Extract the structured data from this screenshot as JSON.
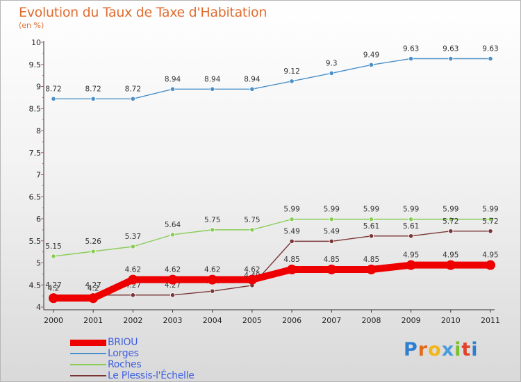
{
  "logo": {
    "letters": [
      "P",
      "r",
      "o",
      "x",
      "i",
      "t",
      "i"
    ]
  },
  "chart_data": {
    "type": "line",
    "title": "Evolution du Taux de Taxe d'Habitation",
    "unit_label": "(en %)",
    "xlabel": "",
    "ylabel": "",
    "categories": [
      "2000",
      "2001",
      "2002",
      "2003",
      "2004",
      "2005",
      "2006",
      "2007",
      "2008",
      "2009",
      "2010",
      "2011"
    ],
    "ylim": [
      4,
      10
    ],
    "yticks": [
      "4",
      "4.5",
      "5",
      "5.5",
      "6",
      "6.5",
      "7",
      "7.5",
      "8",
      "8.5",
      "9",
      "9.5",
      "10"
    ],
    "grid": false,
    "legend_position": "bottom-left",
    "series": [
      {
        "name": "BRIOU",
        "color": "#ee0000",
        "values": [
          4.2,
          4.2,
          4.62,
          4.62,
          4.62,
          4.62,
          4.85,
          4.85,
          4.85,
          4.95,
          4.95,
          4.95
        ],
        "labels": [
          "4.2",
          "4.2",
          "4.62",
          "4.62",
          "4.62",
          "4.62",
          "4.85",
          "4.85",
          "4.85",
          "4.95",
          "4.95",
          "4.95"
        ]
      },
      {
        "name": "Lorges",
        "color": "#4a90c8",
        "values": [
          8.72,
          8.72,
          8.72,
          8.94,
          8.94,
          8.94,
          9.12,
          9.3,
          9.49,
          9.63,
          9.63,
          9.63
        ],
        "labels": [
          "8.72",
          "8.72",
          "8.72",
          "8.94",
          "8.94",
          "8.94",
          "9.12",
          "9.3",
          "9.49",
          "9.63",
          "9.63",
          "9.63"
        ]
      },
      {
        "name": "Roches",
        "color": "#88cc55",
        "values": [
          5.15,
          5.26,
          5.37,
          5.64,
          5.75,
          5.75,
          5.99,
          5.99,
          5.99,
          5.99,
          5.99,
          5.99
        ],
        "labels": [
          "5.15",
          "5.26",
          "5.37",
          "5.64",
          "5.75",
          "5.75",
          "5.99",
          "5.99",
          "5.99",
          "5.99",
          "5.99",
          "5.99"
        ]
      },
      {
        "name": "Le Plessis-l'Échelle",
        "color": "#7a3535",
        "values": [
          4.27,
          4.27,
          4.27,
          4.27,
          4.36,
          4.49,
          5.49,
          5.49,
          5.61,
          5.61,
          5.72,
          5.72
        ],
        "labels": [
          "4.27",
          "4.27",
          "4.27",
          "4.27",
          "4.36",
          "4.49",
          "5.49",
          "5.49",
          "5.61",
          "5.61",
          "5.72",
          "5.72"
        ]
      }
    ]
  }
}
